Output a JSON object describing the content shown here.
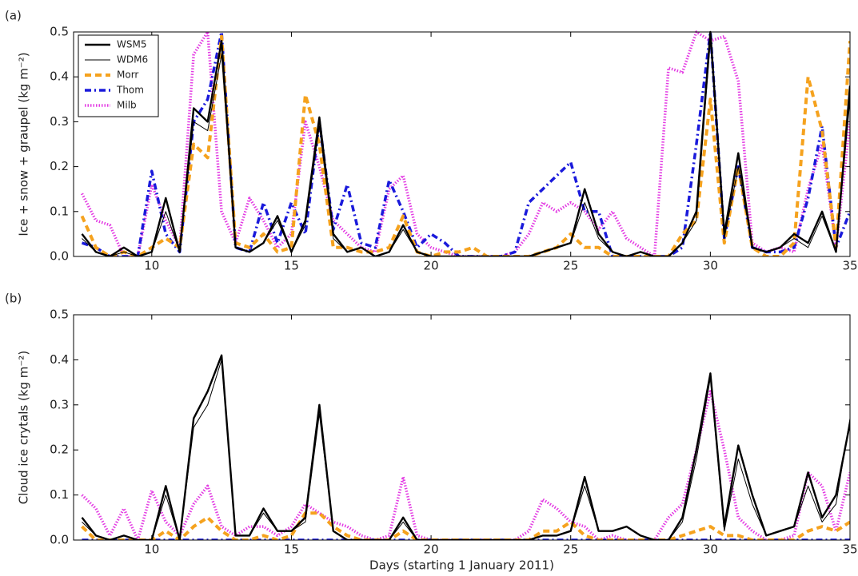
{
  "chart_data": [
    {
      "type": "line",
      "panel_label": "(a)",
      "ylabel": "Ice + snow + graupel (kg m⁻²)",
      "legend": "upper left",
      "xlim": [
        7.2,
        35
      ],
      "ylim": [
        0,
        0.5
      ],
      "xticks": [
        10,
        15,
        20,
        25,
        30,
        35
      ],
      "yticks": [
        {
          "value": 0,
          "label": "0.0"
        },
        0.1,
        0.2,
        0.3,
        0.4,
        0.5
      ],
      "x": [
        7.5,
        8,
        8.5,
        9,
        9.5,
        10,
        10.5,
        11,
        11.5,
        12,
        12.5,
        13,
        13.5,
        14,
        14.5,
        15,
        15.5,
        16,
        16.5,
        17,
        17.5,
        18,
        18.5,
        19,
        19.5,
        20,
        20.5,
        21,
        21.5,
        22,
        22.5,
        23,
        23.5,
        24,
        24.5,
        25,
        25.5,
        26,
        26.5,
        27,
        27.5,
        28,
        28.5,
        29,
        29.5,
        30,
        30.5,
        31,
        31.5,
        32,
        32.5,
        33,
        33.5,
        34,
        34.5,
        35
      ],
      "series": [
        {
          "name": "WSM5",
          "color": "#000000",
          "style": "thick",
          "values": [
            0.05,
            0.01,
            0,
            0.02,
            0,
            0.01,
            0.13,
            0.01,
            0.33,
            0.3,
            0.48,
            0.02,
            0.01,
            0.03,
            0.09,
            0.01,
            0.08,
            0.31,
            0.05,
            0.01,
            0.02,
            0,
            0.01,
            0.07,
            0.01,
            0,
            0,
            0,
            0,
            0,
            0,
            0,
            0,
            0.01,
            0.02,
            0.03,
            0.15,
            0.05,
            0.01,
            0,
            0.01,
            0,
            0,
            0.03,
            0.1,
            0.5,
            0.05,
            0.23,
            0.02,
            0.01,
            0.02,
            0.05,
            0.03,
            0.1,
            0.01,
            0.38
          ]
        },
        {
          "name": "WDM6",
          "color": "#000000",
          "style": "thin",
          "values": [
            0.04,
            0.01,
            0,
            0.01,
            0,
            0.01,
            0.1,
            0.01,
            0.3,
            0.28,
            0.45,
            0.02,
            0.01,
            0.03,
            0.08,
            0.01,
            0.07,
            0.29,
            0.04,
            0.01,
            0.02,
            0,
            0.01,
            0.06,
            0.01,
            0,
            0,
            0,
            0,
            0,
            0,
            0,
            0,
            0.01,
            0.02,
            0.03,
            0.12,
            0.04,
            0.01,
            0,
            0.01,
            0,
            0,
            0.03,
            0.08,
            0.48,
            0.04,
            0.2,
            0.02,
            0.01,
            0.02,
            0.04,
            0.02,
            0.09,
            0.01,
            0.35
          ]
        },
        {
          "name": "Morr",
          "color": "#f5a21e",
          "style": "dashed",
          "values": [
            0.09,
            0.02,
            0,
            0.01,
            0,
            0.02,
            0.04,
            0.02,
            0.25,
            0.22,
            0.49,
            0.03,
            0.02,
            0.05,
            0.01,
            0.02,
            0.36,
            0.25,
            0.02,
            0.02,
            0.01,
            0.01,
            0.02,
            0.09,
            0.01,
            0,
            0.01,
            0.01,
            0.02,
            0,
            0,
            0,
            0,
            0.01,
            0.02,
            0.05,
            0.02,
            0.02,
            0,
            0,
            0,
            0,
            0,
            0.05,
            0.08,
            0.35,
            0.03,
            0.2,
            0.02,
            0,
            0,
            0.03,
            0.4,
            0.28,
            0.02,
            0.48
          ]
        },
        {
          "name": "Thom",
          "color": "#1a1adb",
          "style": "dashdot",
          "values": [
            0.03,
            0.02,
            0,
            0,
            0,
            0.19,
            0.05,
            0.01,
            0.3,
            0.35,
            0.5,
            0.02,
            0.01,
            0.12,
            0.03,
            0.12,
            0.05,
            0.3,
            0.06,
            0.16,
            0.03,
            0.02,
            0.17,
            0.1,
            0.02,
            0.05,
            0.03,
            0,
            0,
            0,
            0,
            0.01,
            0.12,
            0.15,
            0.18,
            0.21,
            0.1,
            0.1,
            0,
            0,
            0,
            0,
            0,
            0.02,
            0.25,
            0.5,
            0.04,
            0.2,
            0.02,
            0.01,
            0.01,
            0.02,
            0.13,
            0.29,
            0.02,
            0.1
          ]
        },
        {
          "name": "Milb",
          "color": "#e33be3",
          "style": "dotted",
          "values": [
            0.14,
            0.08,
            0.07,
            0,
            0,
            0.16,
            0.08,
            0.02,
            0.45,
            0.5,
            0.1,
            0.03,
            0.13,
            0.08,
            0.02,
            0.05,
            0.3,
            0.2,
            0.08,
            0.05,
            0.02,
            0.01,
            0.15,
            0.18,
            0.05,
            0.02,
            0.01,
            0,
            0,
            0,
            0,
            0.01,
            0.05,
            0.12,
            0.1,
            0.12,
            0.1,
            0.06,
            0.1,
            0.04,
            0.02,
            0,
            0.42,
            0.41,
            0.5,
            0.48,
            0.49,
            0.39,
            0.03,
            0.01,
            0.02,
            0.01,
            0.15,
            0.25,
            0.02,
            0.3
          ]
        }
      ]
    },
    {
      "type": "line",
      "panel_label": "(b)",
      "ylabel": "Cloud ice crytals (kg m⁻²)",
      "xlabel": "Days (starting 1 January 2011)",
      "xlim": [
        7.2,
        35
      ],
      "ylim": [
        0,
        0.5
      ],
      "xticks": [
        10,
        15,
        20,
        25,
        30,
        35
      ],
      "yticks": [
        {
          "value": 0,
          "label": "0.0"
        },
        0.1,
        0.2,
        0.3,
        0.4,
        0.5
      ],
      "x": [
        7.5,
        8,
        8.5,
        9,
        9.5,
        10,
        10.5,
        11,
        11.5,
        12,
        12.5,
        13,
        13.5,
        14,
        14.5,
        15,
        15.5,
        16,
        16.5,
        17,
        17.5,
        18,
        18.5,
        19,
        19.5,
        20,
        20.5,
        21,
        21.5,
        22,
        22.5,
        23,
        23.5,
        24,
        24.5,
        25,
        25.5,
        26,
        26.5,
        27,
        27.5,
        28,
        28.5,
        29,
        29.5,
        30,
        30.5,
        31,
        31.5,
        32,
        32.5,
        33,
        33.5,
        34,
        34.5,
        35
      ],
      "series": [
        {
          "color": "#000000",
          "style": "thick",
          "values": [
            0.05,
            0.01,
            0,
            0.01,
            0,
            0,
            0.12,
            0,
            0.27,
            0.33,
            0.41,
            0.01,
            0.01,
            0.07,
            0.02,
            0.02,
            0.05,
            0.3,
            0.02,
            0,
            0,
            0,
            0,
            0.05,
            0,
            0,
            0,
            0,
            0,
            0,
            0,
            0,
            0,
            0.01,
            0.01,
            0.02,
            0.14,
            0.02,
            0.02,
            0.03,
            0.01,
            0,
            0,
            0.05,
            0.2,
            0.37,
            0.03,
            0.21,
            0.1,
            0.01,
            0.02,
            0.03,
            0.15,
            0.05,
            0.1,
            0.26
          ]
        },
        {
          "color": "#000000",
          "style": "thin",
          "values": [
            0.04,
            0.01,
            0,
            0.01,
            0,
            0,
            0.1,
            0,
            0.25,
            0.3,
            0.4,
            0.01,
            0.01,
            0.06,
            0.02,
            0.02,
            0.04,
            0.28,
            0.02,
            0,
            0,
            0,
            0,
            0.04,
            0,
            0,
            0,
            0,
            0,
            0,
            0,
            0,
            0,
            0.01,
            0.01,
            0.02,
            0.12,
            0.02,
            0.02,
            0.03,
            0.01,
            0,
            0,
            0.04,
            0.18,
            0.36,
            0.02,
            0.18,
            0.08,
            0.01,
            0.02,
            0.03,
            0.12,
            0.04,
            0.08,
            0.27
          ]
        },
        {
          "color": "#f5a21e",
          "style": "dashed",
          "values": [
            0.03,
            0,
            0,
            0,
            0,
            0,
            0.02,
            0,
            0.03,
            0.05,
            0.02,
            0,
            0,
            0.01,
            0,
            0.01,
            0.06,
            0.06,
            0.03,
            0.01,
            0,
            0,
            0,
            0.02,
            0,
            0,
            0,
            0,
            0,
            0,
            0,
            0,
            0,
            0.02,
            0.02,
            0.04,
            0.01,
            0,
            0,
            0,
            0,
            0,
            0,
            0.01,
            0.02,
            0.03,
            0.01,
            0.01,
            0,
            0,
            0,
            0,
            0.02,
            0.03,
            0.02,
            0.04
          ]
        },
        {
          "color": "#1a1adb",
          "style": "dashdot",
          "values": [
            0,
            0,
            0,
            0,
            0,
            0,
            0,
            0,
            0,
            0,
            0,
            0,
            0,
            0,
            0,
            0,
            0,
            0,
            0,
            0,
            0,
            0,
            0,
            0,
            0,
            0,
            0,
            0,
            0,
            0,
            0,
            0,
            0,
            0,
            0,
            0,
            0,
            0,
            0,
            0,
            0,
            0,
            0,
            0,
            0,
            0,
            0,
            0,
            0,
            0,
            0,
            0,
            0,
            0,
            0,
            0
          ]
        },
        {
          "color": "#e33be3",
          "style": "dotted",
          "values": [
            0.1,
            0.07,
            0.01,
            0.07,
            0,
            0.11,
            0.04,
            0.01,
            0.08,
            0.12,
            0.03,
            0.01,
            0.03,
            0.03,
            0.01,
            0.03,
            0.08,
            0.06,
            0.04,
            0.03,
            0.01,
            0,
            0.01,
            0.14,
            0.01,
            0,
            0,
            0,
            0,
            0,
            0,
            0,
            0.02,
            0.09,
            0.07,
            0.04,
            0.03,
            0,
            0.01,
            0,
            0,
            0,
            0.05,
            0.08,
            0.2,
            0.33,
            0.2,
            0.05,
            0.02,
            0,
            0,
            0.01,
            0.15,
            0.12,
            0.02,
            0.15
          ]
        }
      ]
    }
  ]
}
